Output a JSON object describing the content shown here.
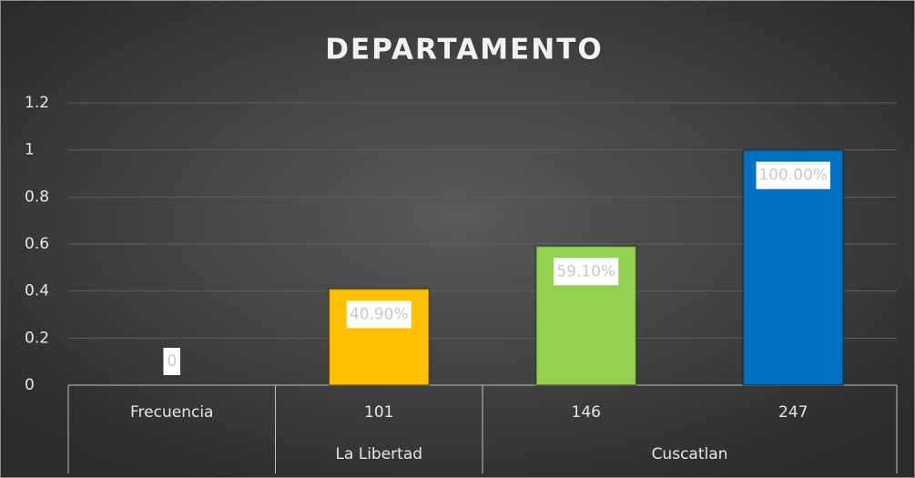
{
  "chart_data": {
    "type": "bar",
    "title": "DEPARTAMENTO",
    "categories": [
      "Frecuencia",
      "101",
      "146",
      "247"
    ],
    "groups": [
      {
        "label": null,
        "size": 1
      },
      {
        "label": "La Libertad",
        "size": 1
      },
      {
        "label": "Cuscatlan",
        "size": 2
      }
    ],
    "values": [
      0,
      0.409,
      0.591,
      1
    ],
    "value_labels": [
      "0",
      "40.90%",
      "59.10%",
      "100.00%"
    ],
    "colors": [
      "#a5a5a5",
      "#ffc000",
      "#92d050",
      "#0070c0"
    ],
    "ylim": [
      0,
      1.2
    ],
    "yticks": [
      0,
      0.2,
      0.4,
      0.6,
      0.8,
      1,
      1.2
    ],
    "grid": true
  }
}
